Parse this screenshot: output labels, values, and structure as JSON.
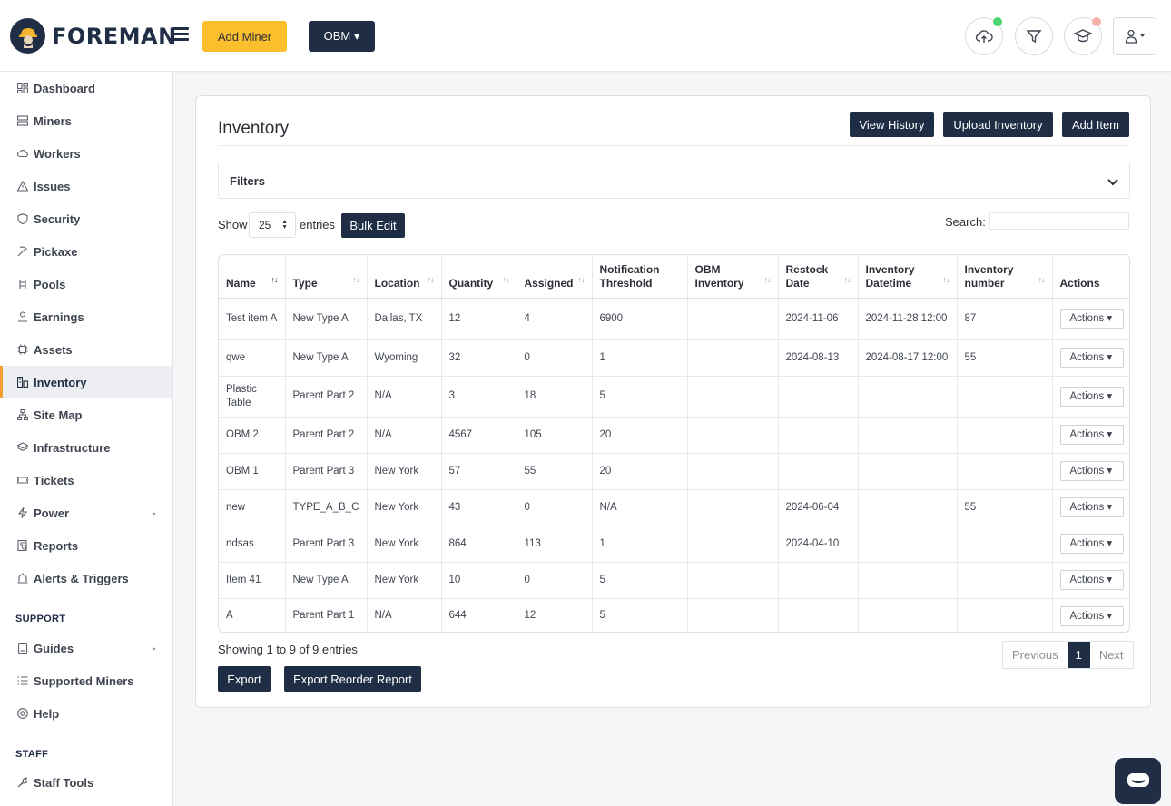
{
  "header": {
    "brand": "FOREMAN",
    "add_miner_label": "Add Miner",
    "obm_label": "OBM ▾",
    "status_colors": {
      "online": "#4ad66d",
      "alert": "#f6b0a8"
    }
  },
  "sidebar": {
    "items": [
      {
        "label": "Dashboard",
        "icon": "dashboard-icon"
      },
      {
        "label": "Miners",
        "icon": "server-icon"
      },
      {
        "label": "Workers",
        "icon": "cloud-icon"
      },
      {
        "label": "Issues",
        "icon": "warning-icon"
      },
      {
        "label": "Security",
        "icon": "shield-icon"
      },
      {
        "label": "Pickaxe",
        "icon": "pickaxe-icon"
      },
      {
        "label": "Pools",
        "icon": "pools-icon"
      },
      {
        "label": "Earnings",
        "icon": "earnings-icon"
      },
      {
        "label": "Assets",
        "icon": "chip-icon"
      },
      {
        "label": "Inventory",
        "icon": "inventory-icon"
      },
      {
        "label": "Site Map",
        "icon": "sitemap-icon"
      },
      {
        "label": "Infrastructure",
        "icon": "layers-icon"
      },
      {
        "label": "Tickets",
        "icon": "ticket-icon"
      },
      {
        "label": "Power",
        "icon": "bolt-icon"
      },
      {
        "label": "Reports",
        "icon": "reports-icon"
      },
      {
        "label": "Alerts & Triggers",
        "icon": "alert-icon"
      }
    ],
    "support_heading": "SUPPORT",
    "support_items": [
      {
        "label": "Guides",
        "icon": "book-icon"
      },
      {
        "label": "Supported Miners",
        "icon": "list-icon"
      },
      {
        "label": "Help",
        "icon": "help-icon"
      }
    ],
    "staff_heading": "STAFF",
    "staff_items": [
      {
        "label": "Staff Tools",
        "icon": "tools-icon"
      }
    ]
  },
  "main": {
    "title": "Inventory",
    "view_history_label": "View History",
    "upload_inventory_label": "Upload Inventory",
    "add_item_label": "Add Item",
    "filters_label": "Filters",
    "show_label": "Show",
    "page_size": "25",
    "entries_label": "entries",
    "bulk_edit_label": "Bulk Edit",
    "search_label": "Search:",
    "search_value": "",
    "columns": [
      "Name",
      "Type",
      "Location",
      "Quantity",
      "Assigned",
      "Notification Threshold",
      "OBM Inventory",
      "Restock Date",
      "Inventory Datetime",
      "Inventory number",
      "Actions"
    ],
    "rows": [
      [
        "Test item A",
        "New Type A",
        "Dallas, TX",
        "12",
        "4",
        "6900",
        "",
        "2024-11-06",
        "2024-11-28 12:00",
        "87"
      ],
      [
        "qwe",
        "New Type A",
        "Wyoming",
        "32",
        "0",
        "1",
        "",
        "2024-08-13",
        "2024-08-17 12:00",
        "55"
      ],
      [
        "Plastic Table",
        "Parent Part 2",
        "N/A",
        "3",
        "18",
        "5",
        "",
        "",
        "",
        ""
      ],
      [
        "OBM 2",
        "Parent Part 2",
        "N/A",
        "4567",
        "105",
        "20",
        "",
        "",
        "",
        ""
      ],
      [
        "OBM 1",
        "Parent Part 3",
        "New York",
        "57",
        "55",
        "20",
        "",
        "",
        "",
        ""
      ],
      [
        "new",
        "TYPE_A_B_C",
        "New York",
        "43",
        "0",
        "N/A",
        "",
        "2024-06-04",
        "",
        "55"
      ],
      [
        "ndsas",
        "Parent Part 3",
        "New York",
        "864",
        "113",
        "1",
        "",
        "2024-04-10",
        "",
        ""
      ],
      [
        "Item 41",
        "New Type A",
        "New York",
        "10",
        "0",
        "5",
        "",
        "",
        "",
        ""
      ],
      [
        "A",
        "Parent Part 1",
        "N/A",
        "644",
        "12",
        "5",
        "",
        "",
        "",
        ""
      ]
    ],
    "actions_label": "Actions ▾",
    "showing_text": "Showing 1 to 9 of 9 entries",
    "pager": {
      "previous": "Previous",
      "current": "1",
      "next": "Next"
    },
    "export_label": "Export",
    "export_reorder_label": "Export Reorder Report"
  }
}
